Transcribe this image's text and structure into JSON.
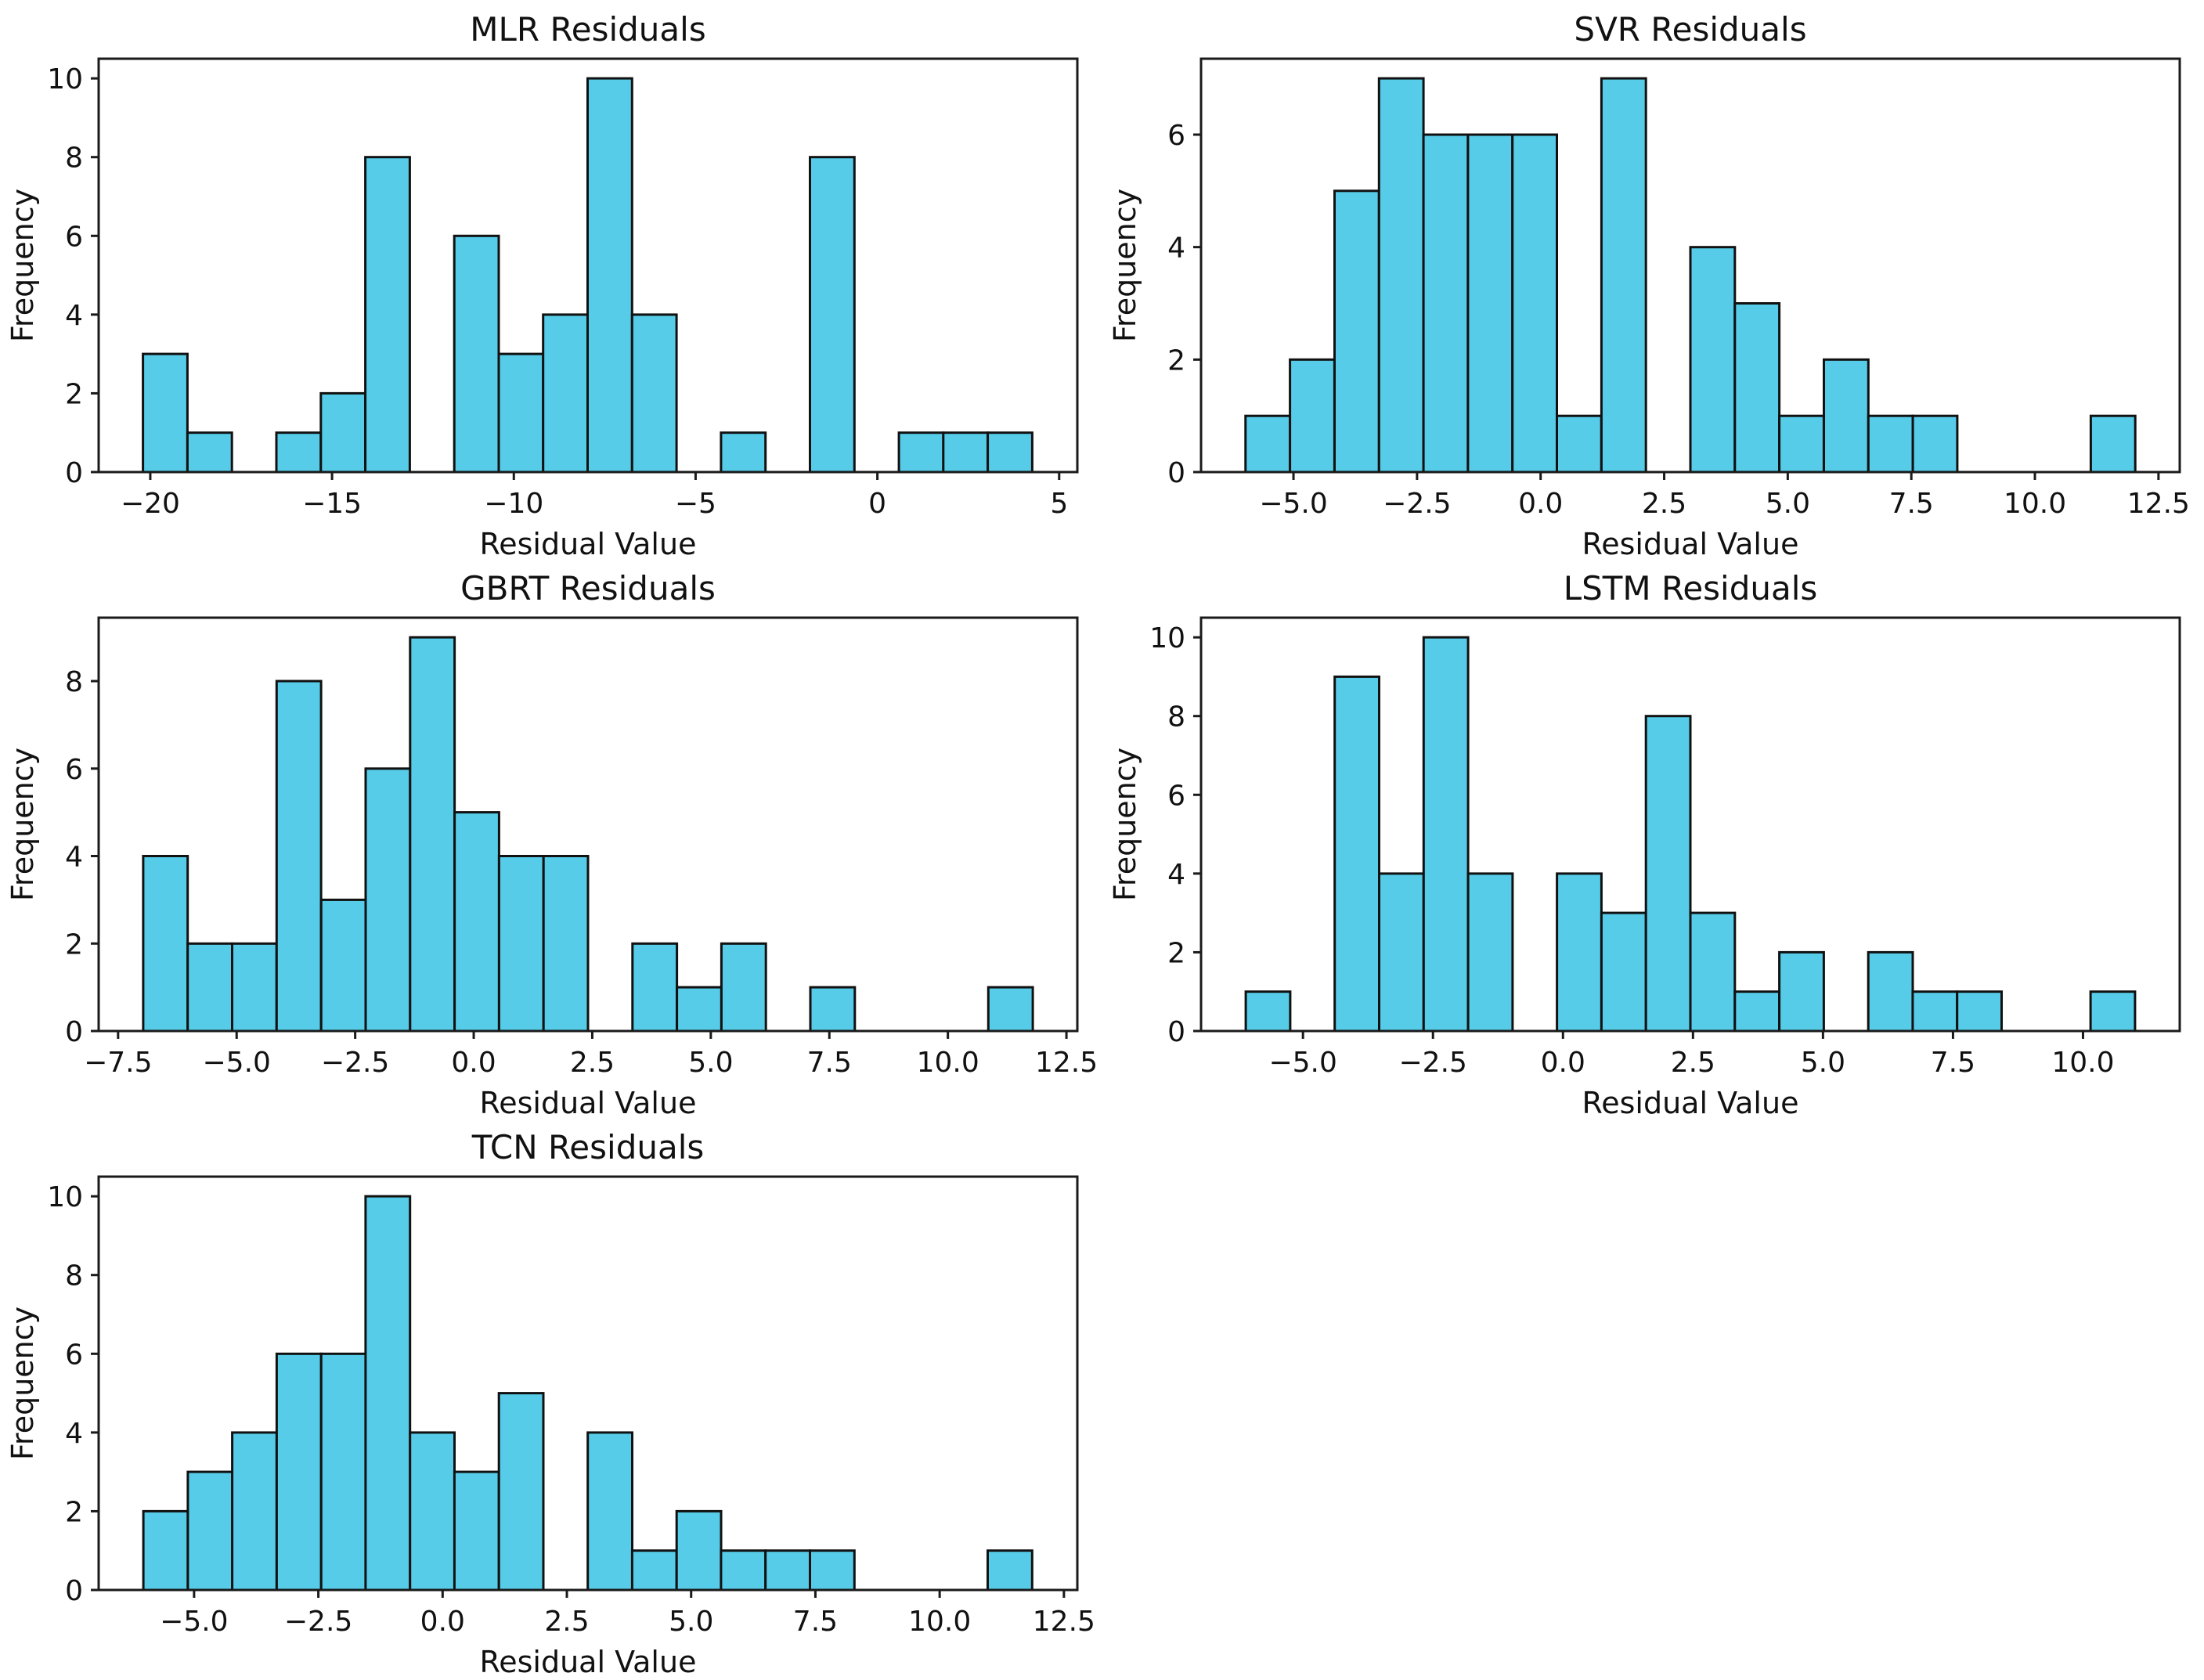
{
  "figure": {
    "background": "#ffffff",
    "grid": {
      "rows": 3,
      "cols": 2,
      "note": "5 histogram subplots, bottom-right cell empty"
    }
  },
  "style": {
    "bar_fill": "#56cce8",
    "bar_edge": "#111111",
    "axis_color": "#1a1a1a",
    "text_color": "#111111"
  },
  "chart_data": [
    {
      "id": "mlr",
      "type": "bar",
      "subtype": "histogram",
      "title": "MLR Residuals",
      "xlabel": "Residual Value",
      "ylabel": "Frequency",
      "bin_start": -20.2,
      "bin_width": 1.223,
      "counts": [
        3,
        1,
        0,
        1,
        2,
        8,
        0,
        6,
        3,
        4,
        10,
        4,
        0,
        1,
        0,
        8,
        0,
        1,
        1,
        1
      ],
      "xlim": [
        -21.42,
        5.5
      ],
      "ylim": [
        0,
        10.5
      ],
      "xticks": [
        -20,
        -15,
        -10,
        -5,
        0,
        5
      ],
      "xtick_labels": [
        "−20",
        "−15",
        "−10",
        "−5",
        "0",
        "5"
      ],
      "yticks": [
        0,
        2,
        4,
        6,
        8,
        10
      ],
      "ytick_labels": [
        "0",
        "2",
        "4",
        "6",
        "8",
        "10"
      ],
      "grid": "off",
      "legend": "none"
    },
    {
      "id": "svr",
      "type": "bar",
      "subtype": "histogram",
      "title": "SVR Residuals",
      "xlabel": "Residual Value",
      "ylabel": "Frequency",
      "bin_start": -5.97,
      "bin_width": 0.9,
      "counts": [
        1,
        2,
        5,
        7,
        6,
        6,
        6,
        1,
        7,
        0,
        4,
        3,
        1,
        2,
        1,
        1,
        0,
        0,
        0,
        1
      ],
      "xlim": [
        -6.87,
        12.93
      ],
      "ylim": [
        0,
        7.35
      ],
      "xticks": [
        -5,
        -2.5,
        0,
        2.5,
        5,
        7.5,
        10,
        12.5
      ],
      "xtick_labels": [
        "−5.0",
        "−2.5",
        "0.0",
        "2.5",
        "5.0",
        "7.5",
        "10.0",
        "12.5"
      ],
      "yticks": [
        0,
        2,
        4,
        6
      ],
      "ytick_labels": [
        "0",
        "2",
        "4",
        "6"
      ],
      "grid": "off",
      "legend": "none"
    },
    {
      "id": "gbrt",
      "type": "bar",
      "subtype": "histogram",
      "title": "GBRT Residuals",
      "xlabel": "Residual Value",
      "ylabel": "Frequency",
      "bin_start": -6.97,
      "bin_width": 0.938,
      "counts": [
        4,
        2,
        2,
        8,
        3,
        6,
        9,
        5,
        4,
        4,
        0,
        2,
        1,
        2,
        0,
        1,
        0,
        0,
        0,
        1
      ],
      "xlim": [
        -7.91,
        12.73
      ],
      "ylim": [
        0,
        9.45
      ],
      "xticks": [
        -7.5,
        -5,
        -2.5,
        0,
        2.5,
        5,
        7.5,
        10,
        12.5
      ],
      "xtick_labels": [
        "−7.5",
        "−5.0",
        "−2.5",
        "0.0",
        "2.5",
        "5.0",
        "7.5",
        "10.0",
        "12.5"
      ],
      "yticks": [
        0,
        2,
        4,
        6,
        8
      ],
      "ytick_labels": [
        "0",
        "2",
        "4",
        "6",
        "8"
      ],
      "grid": "off",
      "legend": "none"
    },
    {
      "id": "lstm",
      "type": "bar",
      "subtype": "histogram",
      "title": "LSTM Residuals",
      "xlabel": "Residual Value",
      "ylabel": "Frequency",
      "bin_start": -6.1,
      "bin_width": 0.855,
      "counts": [
        1,
        0,
        9,
        4,
        10,
        4,
        0,
        4,
        3,
        8,
        3,
        1,
        2,
        0,
        2,
        1,
        1,
        0,
        0,
        1
      ],
      "xlim": [
        -6.96,
        11.86
      ],
      "ylim": [
        0,
        10.5
      ],
      "xticks": [
        -5,
        -2.5,
        0,
        2.5,
        5,
        7.5,
        10
      ],
      "xtick_labels": [
        "−5.0",
        "−2.5",
        "0.0",
        "2.5",
        "5.0",
        "7.5",
        "10.0"
      ],
      "yticks": [
        0,
        2,
        4,
        6,
        8,
        10
      ],
      "ytick_labels": [
        "0",
        "2",
        "4",
        "6",
        "8",
        "10"
      ],
      "grid": "off",
      "legend": "none"
    },
    {
      "id": "tcn",
      "type": "bar",
      "subtype": "histogram",
      "title": "TCN Residuals",
      "xlabel": "Residual Value",
      "ylabel": "Frequency",
      "bin_start": -6.02,
      "bin_width": 0.894,
      "counts": [
        2,
        3,
        4,
        6,
        6,
        10,
        4,
        3,
        5,
        0,
        4,
        1,
        2,
        1,
        1,
        1,
        0,
        0,
        0,
        1
      ],
      "xlim": [
        -6.92,
        12.77
      ],
      "ylim": [
        0,
        10.5
      ],
      "xticks": [
        -5,
        -2.5,
        0,
        2.5,
        5,
        7.5,
        10,
        12.5
      ],
      "xtick_labels": [
        "−5.0",
        "−2.5",
        "0.0",
        "2.5",
        "5.0",
        "7.5",
        "10.0",
        "12.5"
      ],
      "yticks": [
        0,
        2,
        4,
        6,
        8,
        10
      ],
      "ytick_labels": [
        "0",
        "2",
        "4",
        "6",
        "8",
        "10"
      ],
      "grid": "off",
      "legend": "none"
    }
  ]
}
